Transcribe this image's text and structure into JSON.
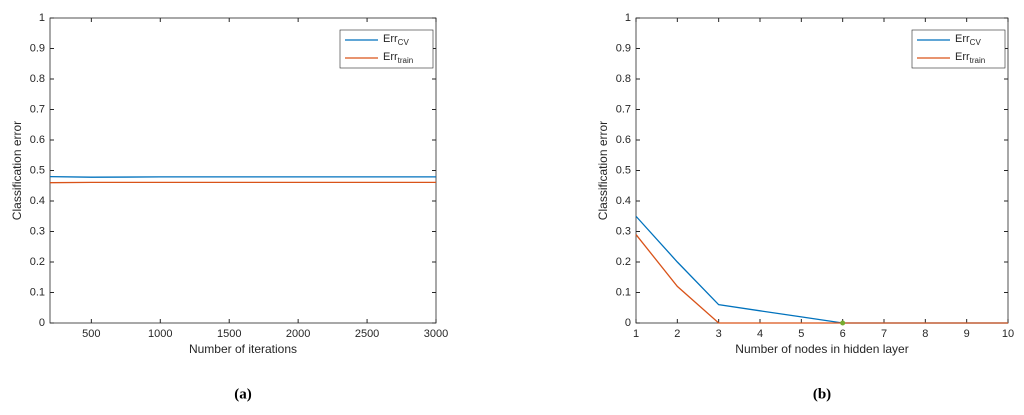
{
  "chart_data": [
    {
      "type": "line",
      "caption": "(a)",
      "xlabel": "Number of iterations",
      "ylabel": "Classification error",
      "x": [
        200,
        500,
        1000,
        1500,
        2000,
        2500,
        3000
      ],
      "series": [
        {
          "name": "Err",
          "subscript": "CV",
          "color": "#0072bd",
          "values": [
            0.48,
            0.478,
            0.479,
            0.479,
            0.479,
            0.479,
            0.479
          ]
        },
        {
          "name": "Err",
          "subscript": "train",
          "color": "#d95319",
          "values": [
            0.46,
            0.461,
            0.461,
            0.461,
            0.461,
            0.461,
            0.461
          ]
        }
      ],
      "xlim": [
        200,
        3000
      ],
      "xticks": [
        500,
        1000,
        1500,
        2000,
        2500,
        3000
      ],
      "ylim": [
        0,
        1
      ],
      "yticks": [
        0,
        0.1,
        0.2,
        0.3,
        0.4,
        0.5,
        0.6,
        0.7,
        0.8,
        0.9,
        1
      ],
      "legend": "top-right"
    },
    {
      "type": "line",
      "caption": "(b)",
      "xlabel": "Number of nodes in hidden layer",
      "ylabel": "Classification error",
      "x": [
        1,
        2,
        3,
        4,
        5,
        6,
        7,
        8,
        9,
        10
      ],
      "series": [
        {
          "name": "Err",
          "subscript": "CV",
          "color": "#0072bd",
          "values": [
            0.35,
            0.2,
            0.06,
            0.04,
            0.02,
            0,
            0,
            0,
            0,
            0
          ]
        },
        {
          "name": "Err",
          "subscript": "train",
          "color": "#d95319",
          "values": [
            0.29,
            0.12,
            0,
            0,
            0,
            0,
            0,
            0,
            0,
            0
          ]
        }
      ],
      "highlight": {
        "x": 6,
        "y": 0,
        "color": "#77ac30"
      },
      "xlim": [
        1,
        10
      ],
      "xticks": [
        1,
        2,
        3,
        4,
        5,
        6,
        7,
        8,
        9,
        10
      ],
      "ylim": [
        0,
        1
      ],
      "yticks": [
        0,
        0.1,
        0.2,
        0.3,
        0.4,
        0.5,
        0.6,
        0.7,
        0.8,
        0.9,
        1
      ],
      "legend": "top-right"
    }
  ]
}
